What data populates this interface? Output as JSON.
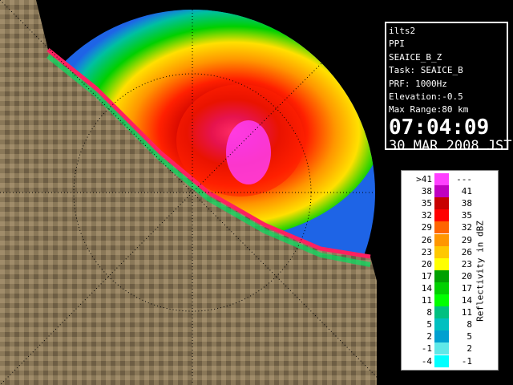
{
  "info": {
    "lines": [
      "ilts2",
      "PPI",
      "SEAICE_B_Z",
      "Task: SEAICE_B",
      "PRF: 1000Hz",
      "Elevation:-0.5",
      "Max Range:80 km"
    ],
    "time": "07:04:09",
    "date": "30 MAR 2008 JST"
  },
  "legend": {
    "title": "Reflectivity in dBZ",
    "rows": [
      {
        "low": ">41",
        "high": "---",
        "color": "#ff40ff"
      },
      {
        "low": "38",
        "high": "41",
        "color": "#c000c0"
      },
      {
        "low": "35",
        "high": "38",
        "color": "#c80000"
      },
      {
        "low": "32",
        "high": "35",
        "color": "#ff0000"
      },
      {
        "low": "29",
        "high": "32",
        "color": "#ff6400"
      },
      {
        "low": "26",
        "high": "29",
        "color": "#ff9600"
      },
      {
        "low": "23",
        "high": "26",
        "color": "#ffc800"
      },
      {
        "low": "20",
        "high": "23",
        "color": "#ffff00"
      },
      {
        "low": "17",
        "high": "20",
        "color": "#00a000"
      },
      {
        "low": "14",
        "high": "17",
        "color": "#00d000"
      },
      {
        "low": "11",
        "high": "14",
        "color": "#00ff00"
      },
      {
        "low": "8",
        "high": "11",
        "color": "#00c080"
      },
      {
        "low": "5",
        "high": "8",
        "color": "#00c0c0"
      },
      {
        "low": "2",
        "high": "5",
        "color": "#00a0d0"
      },
      {
        "low": "-1",
        "high": "2",
        "color": "#60e8e8"
      },
      {
        "low": "-4",
        "high": "-1",
        "color": "#00ffff"
      }
    ]
  }
}
